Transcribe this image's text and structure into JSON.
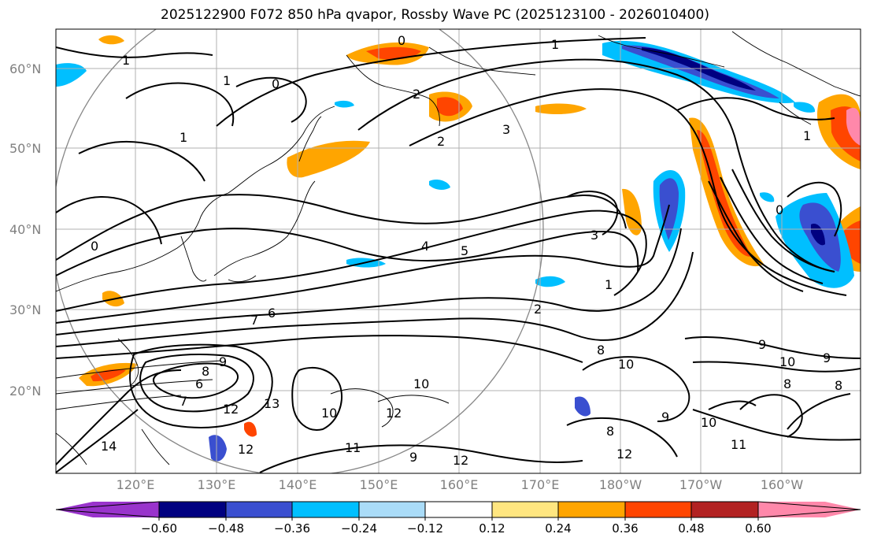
{
  "title": "2025122900 F072 850 hPa qvapor, Rossby Wave PC (2025123100 - 2026010400)",
  "map": {
    "lat_labels": [
      "60°N",
      "50°N",
      "40°N",
      "30°N",
      "20°N"
    ],
    "lon_labels": [
      "120°E",
      "130°E",
      "140°E",
      "150°E",
      "160°E",
      "170°E",
      "180°W",
      "170°W",
      "160°W"
    ],
    "contour_labels": [
      "1",
      "0",
      "1",
      "1",
      "2",
      "3",
      "2",
      "0",
      "1",
      "0",
      "4",
      "5",
      "1",
      "2",
      "7",
      "6",
      "8",
      "9",
      "8",
      "6",
      "7",
      "12",
      "13",
      "10",
      "12",
      "10",
      "9",
      "9",
      "10",
      "8",
      "10",
      "11",
      "12",
      "9",
      "14",
      "12",
      "11",
      "10",
      "8",
      "9",
      "12",
      "8",
      "1",
      "0",
      "3"
    ]
  },
  "colorbar": {
    "ticks": [
      "−0.60",
      "−0.48",
      "−0.36",
      "−0.24",
      "−0.12",
      "0.12",
      "0.24",
      "0.36",
      "0.48",
      "0.60"
    ],
    "colors": [
      "#9933cc",
      "#000080",
      "#3a4fd0",
      "#00bfff",
      "#aadcf8",
      "#ffffff",
      "#ffe680",
      "#ffa500",
      "#ff4500",
      "#b22222",
      "#ff88aa"
    ]
  }
}
